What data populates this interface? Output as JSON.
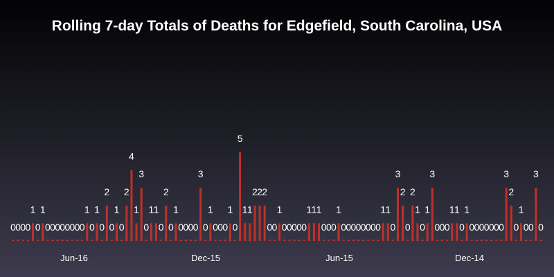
{
  "chart_data": {
    "type": "bar",
    "title": "Rolling 7-day Totals of Deaths for Edgefield, South Carolina, USA",
    "xlabel": "",
    "ylabel": "",
    "ylim": [
      0,
      5
    ],
    "grid": false,
    "colors": {
      "bar": "#c0302a",
      "background_top": "#030305",
      "background_bottom": "#3d3b4d",
      "text": "#ffffff"
    },
    "x_tick_labels": [
      "Jun-16",
      "Dec-15",
      "Jun-15",
      "Dec-14"
    ],
    "values": [
      0,
      0,
      0,
      0,
      1,
      0,
      1,
      0,
      0,
      0,
      0,
      0,
      0,
      0,
      0,
      1,
      0,
      1,
      0,
      2,
      0,
      1,
      0,
      2,
      4,
      1,
      3,
      0,
      1,
      1,
      0,
      2,
      0,
      1,
      0,
      0,
      0,
      0,
      3,
      0,
      1,
      0,
      0,
      0,
      1,
      0,
      5,
      1,
      1,
      2,
      2,
      2,
      0,
      0,
      1,
      0,
      0,
      0,
      0,
      0,
      1,
      1,
      1,
      0,
      0,
      0,
      1,
      0,
      0,
      0,
      0,
      0,
      0,
      0,
      0,
      1,
      1,
      0,
      3,
      2,
      0,
      2,
      1,
      0,
      1,
      3,
      0,
      0,
      0,
      1,
      1,
      0,
      1,
      0,
      0,
      0,
      0,
      0,
      0,
      0,
      3,
      2,
      0,
      1,
      0,
      0,
      3,
      0
    ]
  }
}
